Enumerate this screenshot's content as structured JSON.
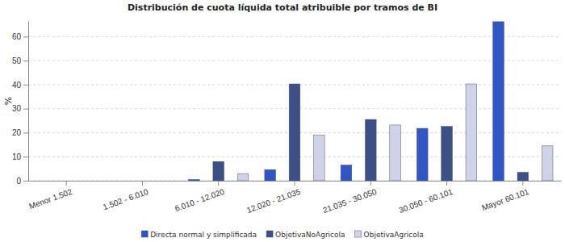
{
  "chart_data": {
    "type": "bar",
    "title": "Distribución de cuota líquida total atribuible por tramos de BI",
    "ylabel": "%",
    "categories": [
      "Menor 1.502",
      "1.502 - 6.010",
      "6.010 - 12.020",
      "12.020 - 21.035",
      "21.035 - 30.050",
      "30.050 - 60.101",
      "Mayor 60.101"
    ],
    "series": [
      {
        "name": "Directa normal y simplificada",
        "color": "#2f55c6",
        "values": [
          0,
          0,
          0.5,
          4.6,
          6.5,
          21.8,
          66.2
        ]
      },
      {
        "name": "ObjetivaNoAgricola",
        "color": "#3c4f86",
        "values": [
          0,
          0,
          8,
          40.3,
          25.5,
          22.6,
          3.5
        ]
      },
      {
        "name": "ObjetivaAgricola",
        "color": "#d0d3e8",
        "values": [
          0,
          0,
          2.9,
          18.9,
          23.2,
          40.3,
          14.5
        ]
      }
    ],
    "ylim": [
      0,
      66.5
    ],
    "yticks": [
      0,
      10,
      20,
      30,
      40,
      50,
      60
    ],
    "grid": true,
    "legend": "bottom"
  }
}
